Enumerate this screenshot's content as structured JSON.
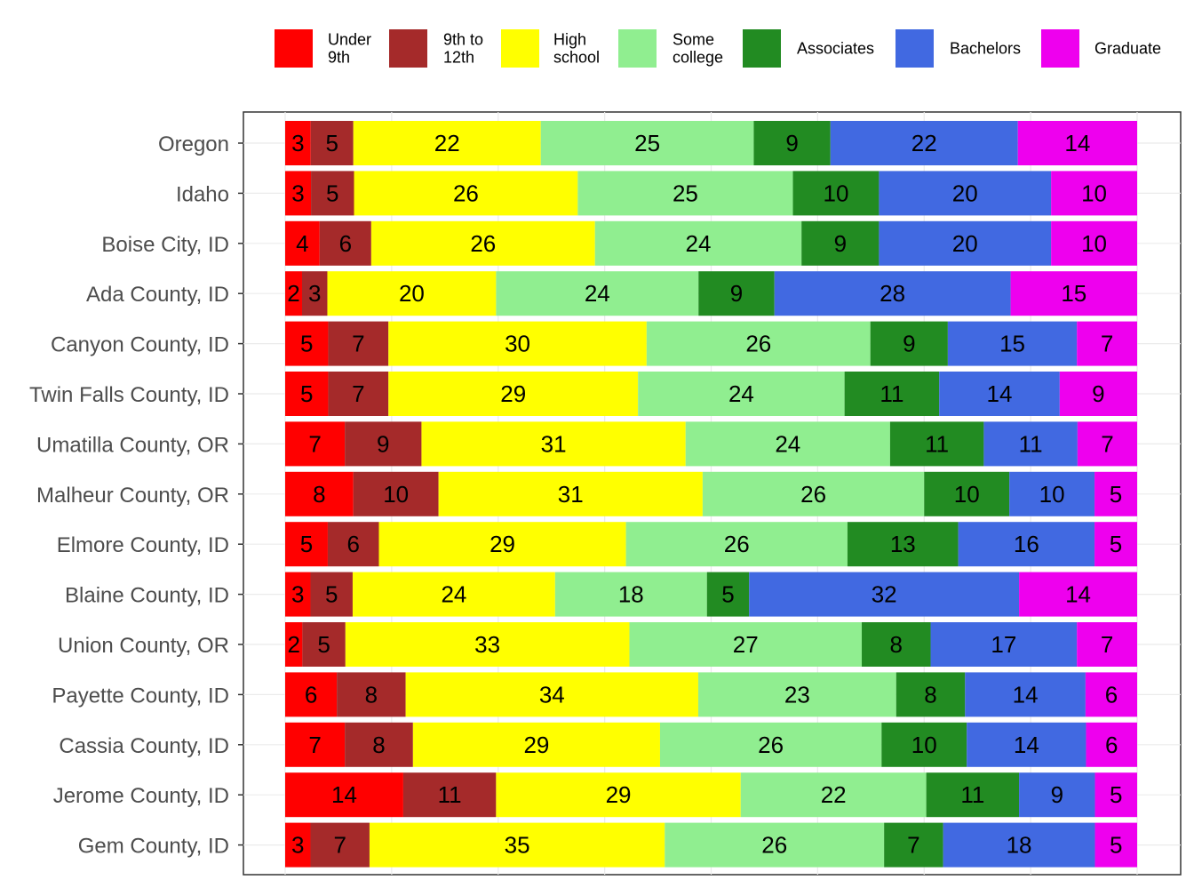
{
  "chart_data": {
    "type": "bar",
    "orientation": "horizontal",
    "stacked": true,
    "normalized_percent": true,
    "legend_position": "top",
    "grid": true,
    "xlim": [
      0,
      100
    ],
    "categories": [
      "Oregon",
      "Idaho",
      "Boise City, ID",
      "Ada County, ID",
      "Canyon County, ID",
      "Twin Falls County, ID",
      "Umatilla County, OR",
      "Malheur County, OR",
      "Elmore County, ID",
      "Blaine County, ID",
      "Union County, OR",
      "Payette County, ID",
      "Cassia County, ID",
      "Jerome County, ID",
      "Gem County, ID"
    ],
    "series": [
      {
        "name": "Under\n9th",
        "color": "#ff0000",
        "values": [
          3,
          3,
          4,
          2,
          5,
          5,
          7,
          8,
          5,
          3,
          2,
          6,
          7,
          14,
          3
        ]
      },
      {
        "name": "9th to\n12th",
        "color": "#a52a2a",
        "values": [
          5,
          5,
          6,
          3,
          7,
          7,
          9,
          10,
          6,
          5,
          5,
          8,
          8,
          11,
          7
        ]
      },
      {
        "name": "High\nschool",
        "color": "#ffff00",
        "values": [
          22,
          26,
          26,
          20,
          30,
          29,
          31,
          31,
          29,
          24,
          33,
          34,
          29,
          29,
          35
        ]
      },
      {
        "name": "Some\ncollege",
        "color": "#90ee90",
        "values": [
          25,
          25,
          24,
          24,
          26,
          24,
          24,
          26,
          26,
          18,
          27,
          23,
          26,
          22,
          26
        ]
      },
      {
        "name": "Associates",
        "color": "#228b22",
        "values": [
          9,
          10,
          9,
          9,
          9,
          11,
          11,
          10,
          13,
          5,
          8,
          8,
          10,
          11,
          7
        ]
      },
      {
        "name": "Bachelors",
        "color": "#4169e1",
        "values": [
          22,
          20,
          20,
          28,
          15,
          14,
          11,
          10,
          16,
          32,
          17,
          14,
          14,
          9,
          18
        ]
      },
      {
        "name": "Graduate",
        "color": "#ee00ee",
        "values": [
          14,
          10,
          10,
          15,
          7,
          9,
          7,
          5,
          5,
          14,
          7,
          6,
          6,
          5,
          5
        ]
      }
    ]
  }
}
